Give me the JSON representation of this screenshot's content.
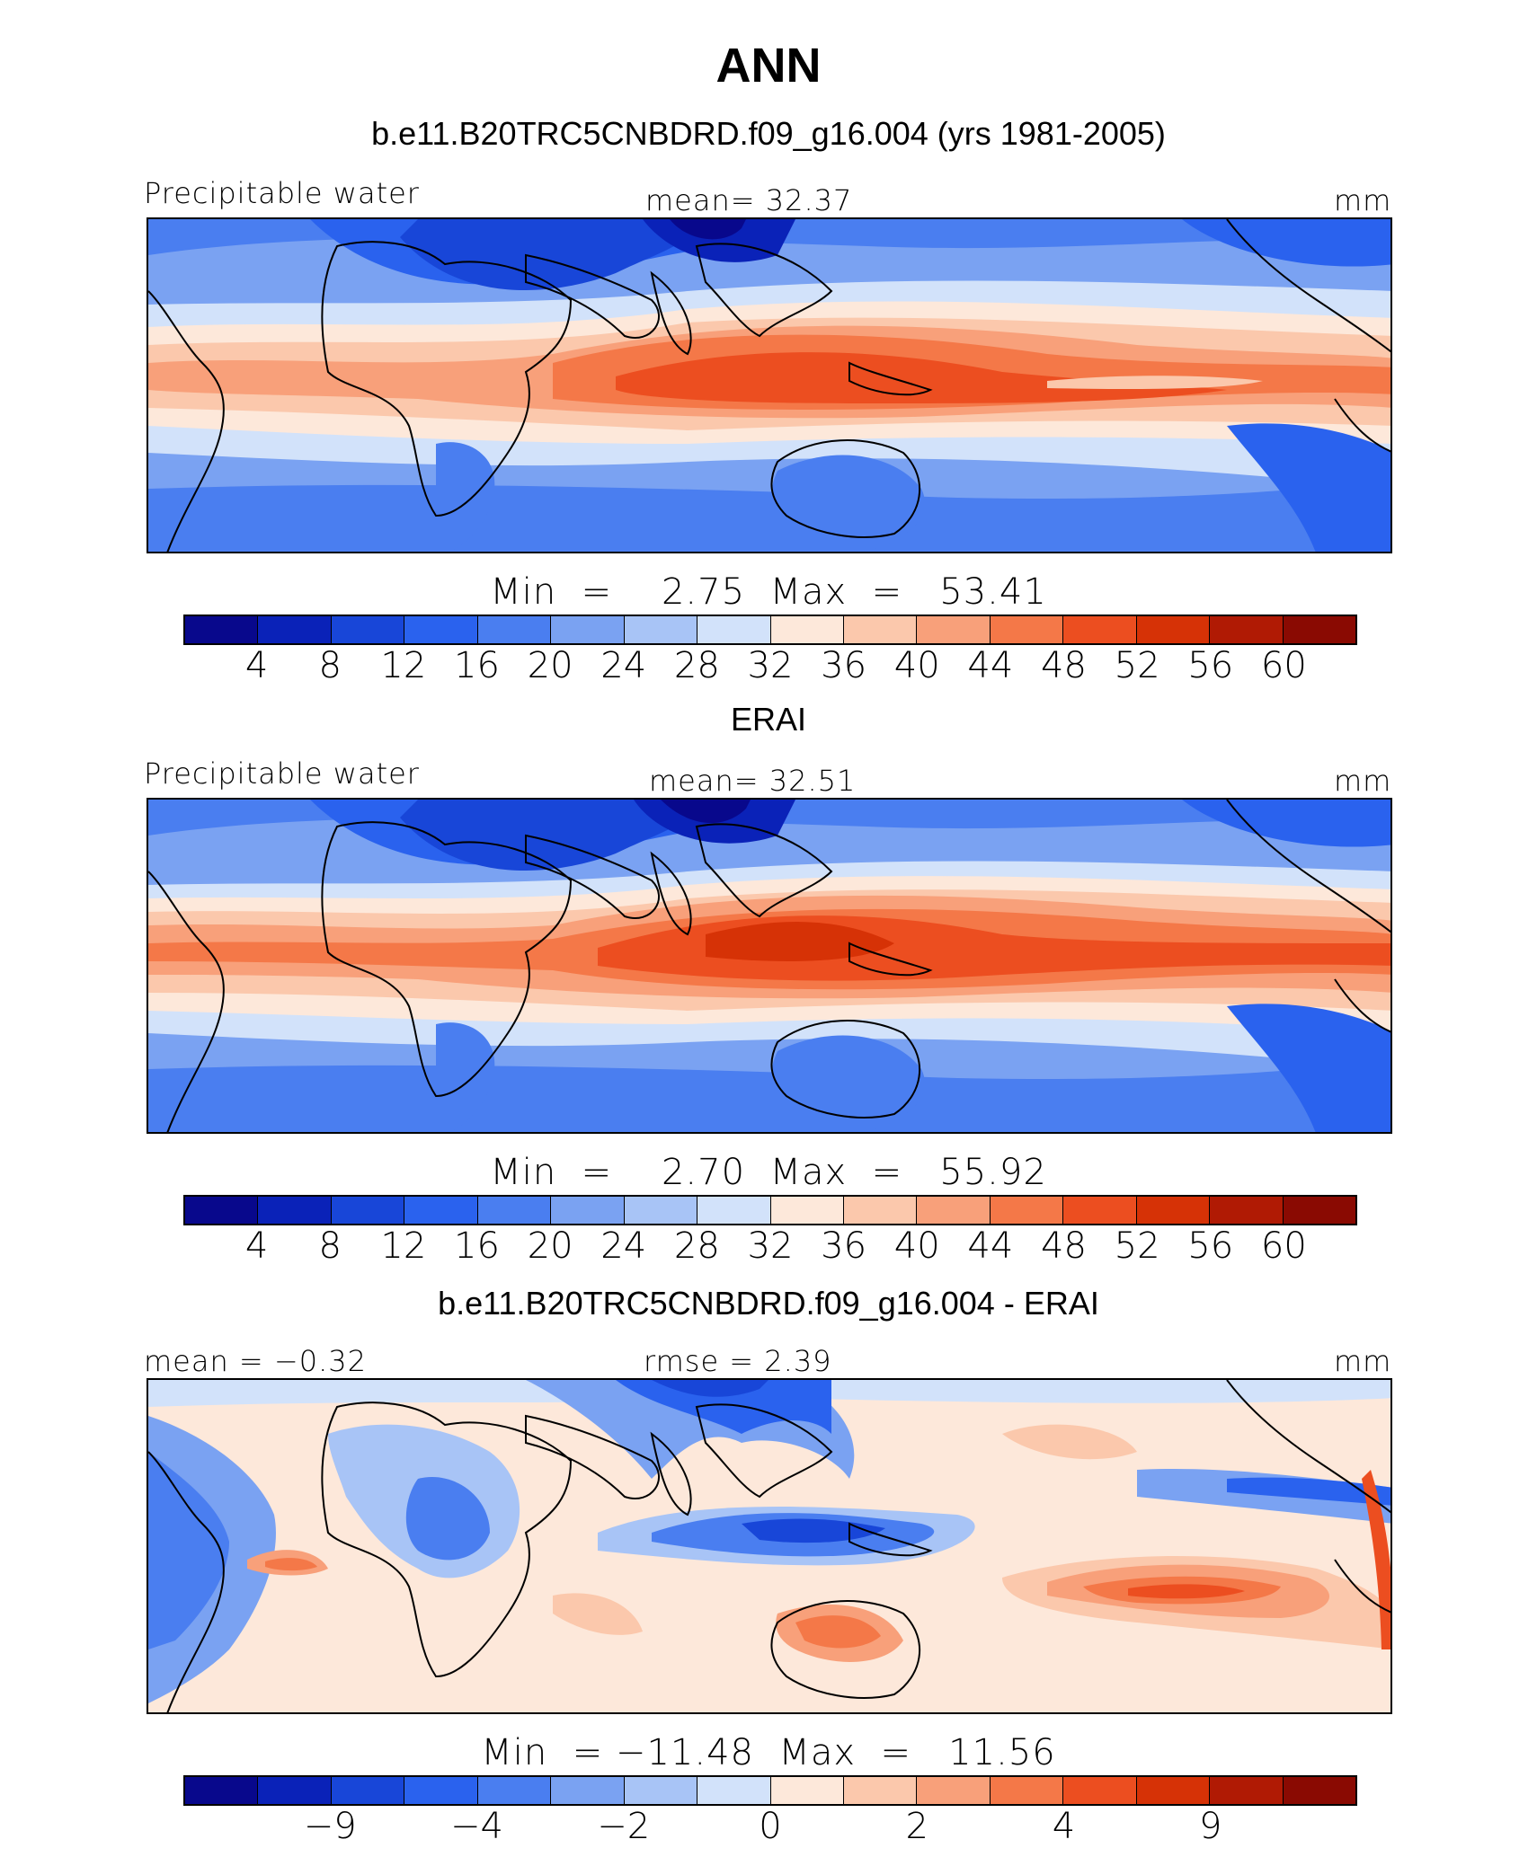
{
  "title": "ANN",
  "panels": [
    {
      "id": "model",
      "heading": "b.e11.B20TRC5CNBDRD.f09_g16.004 (yrs 1981-2005)",
      "left_label": "Precipitable water",
      "center_label": "mean=  32.37",
      "units": "mm",
      "minmax": "Min  =    2.75  Max  =   53.41",
      "ticks": [
        "4",
        "8",
        "12",
        "16",
        "20",
        "24",
        "28",
        "32",
        "36",
        "40",
        "44",
        "48",
        "52",
        "56",
        "60"
      ],
      "palette": "abs"
    },
    {
      "id": "obs",
      "heading": "ERAI",
      "left_label": "Precipitable water",
      "center_label": "mean=  32.51",
      "units": "mm",
      "minmax": "Min  =    2.70  Max  =   55.92",
      "ticks": [
        "4",
        "8",
        "12",
        "16",
        "20",
        "24",
        "28",
        "32",
        "36",
        "40",
        "44",
        "48",
        "52",
        "56",
        "60"
      ],
      "palette": "abs"
    },
    {
      "id": "diff",
      "heading": "b.e11.B20TRC5CNBDRD.f09_g16.004 - ERAI",
      "left_label": "mean =  −0.32",
      "center_label": "rmse =    2.39",
      "units": "mm",
      "minmax": "Min  = −11.48  Max  =   11.56",
      "ticks": [
        "−9",
        "",
        "−4",
        "",
        "−2",
        "",
        "0",
        "",
        "2",
        "",
        "4",
        "",
        "9"
      ],
      "palette": "diff"
    }
  ],
  "colors": {
    "scale": [
      "#08088c",
      "#0a22b8",
      "#1846d8",
      "#2a62ee",
      "#4a7ef0",
      "#7aa2f2",
      "#a8c4f6",
      "#d2e2fa",
      "#fde8da",
      "#fbc8ac",
      "#f8a07a",
      "#f47848",
      "#ec4e20",
      "#d63206",
      "#b01a04",
      "#8a0a02"
    ]
  }
}
